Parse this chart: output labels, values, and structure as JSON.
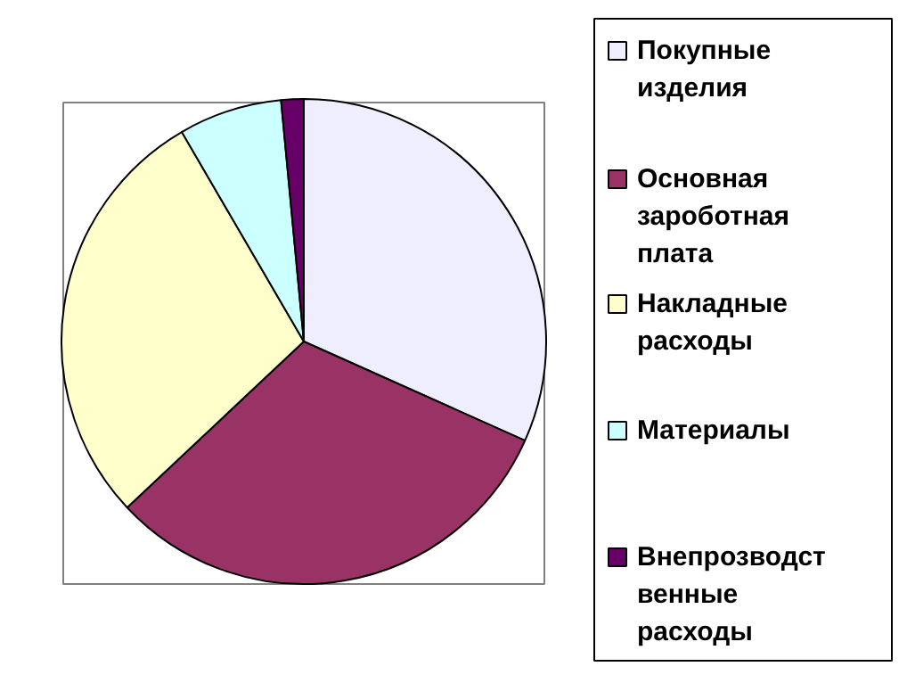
{
  "chart_data": {
    "type": "pie",
    "categories": [
      "Покупные изделия",
      "Основная зароботная плата",
      "Накладные расходы",
      "Материалы",
      "Внепрозводственные расходы"
    ],
    "values": [
      31.7,
      31.3,
      28.6,
      6.9,
      1.5
    ],
    "colors": [
      "#eeeeff",
      "#993366",
      "#ffffcc",
      "#ccffff",
      "#660066"
    ],
    "legend": "right"
  }
}
